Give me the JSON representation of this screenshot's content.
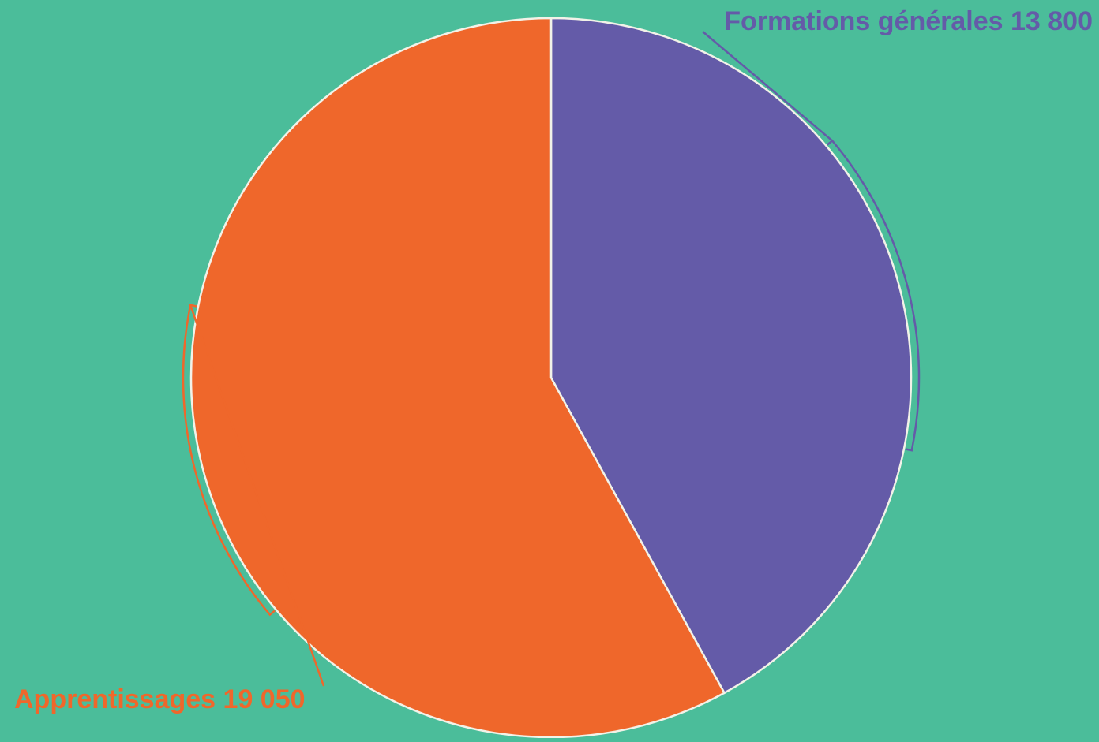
{
  "colors": {
    "background": "#4BBD9A",
    "slice_border": "#F2F2E8"
  },
  "chart_data": {
    "type": "pie",
    "start": "12 o'clock, clockwise",
    "slices": [
      {
        "label": "Formations générales 13 800",
        "name": "Formations générales",
        "value": 13800,
        "color": "#645BA8"
      },
      {
        "label": "Apprentissages 19 050",
        "name": "Apprentissages",
        "value": 19050,
        "color": "#EF672B"
      }
    ],
    "legend": "none"
  }
}
